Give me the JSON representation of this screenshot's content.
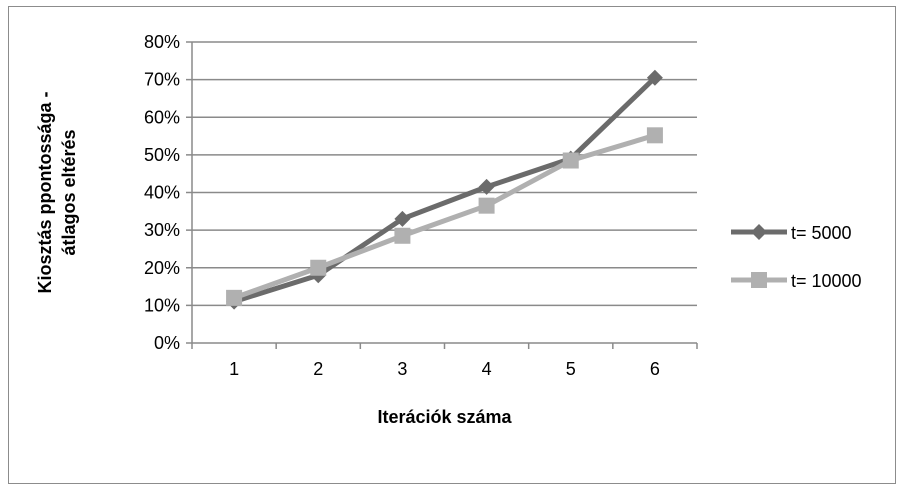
{
  "chart_data": {
    "type": "line",
    "title": "",
    "xlabel": "Iterációk száma",
    "ylabel_lines": [
      "Kiosztás ppontossága -",
      "átlagos eltérés"
    ],
    "categories": [
      "1",
      "2",
      "3",
      "4",
      "5",
      "6"
    ],
    "ylim": [
      0,
      0.8
    ],
    "y_ticks": [
      0,
      0.1,
      0.2,
      0.3,
      0.4,
      0.5,
      0.6,
      0.7,
      0.8
    ],
    "y_tick_labels": [
      "0%",
      "10%",
      "20%",
      "30%",
      "40%",
      "50%",
      "60%",
      "70%",
      "80%"
    ],
    "grid": true,
    "legend_position": "right",
    "series": [
      {
        "name": "t= 5000",
        "marker": "diamond",
        "color": "#6b6b6b",
        "values": [
          0.11,
          0.18,
          0.33,
          0.415,
          0.49,
          0.705
        ]
      },
      {
        "name": "t= 10000",
        "marker": "square",
        "color": "#b0b0b0",
        "values": [
          0.12,
          0.2,
          0.285,
          0.365,
          0.485,
          0.552
        ]
      }
    ]
  }
}
